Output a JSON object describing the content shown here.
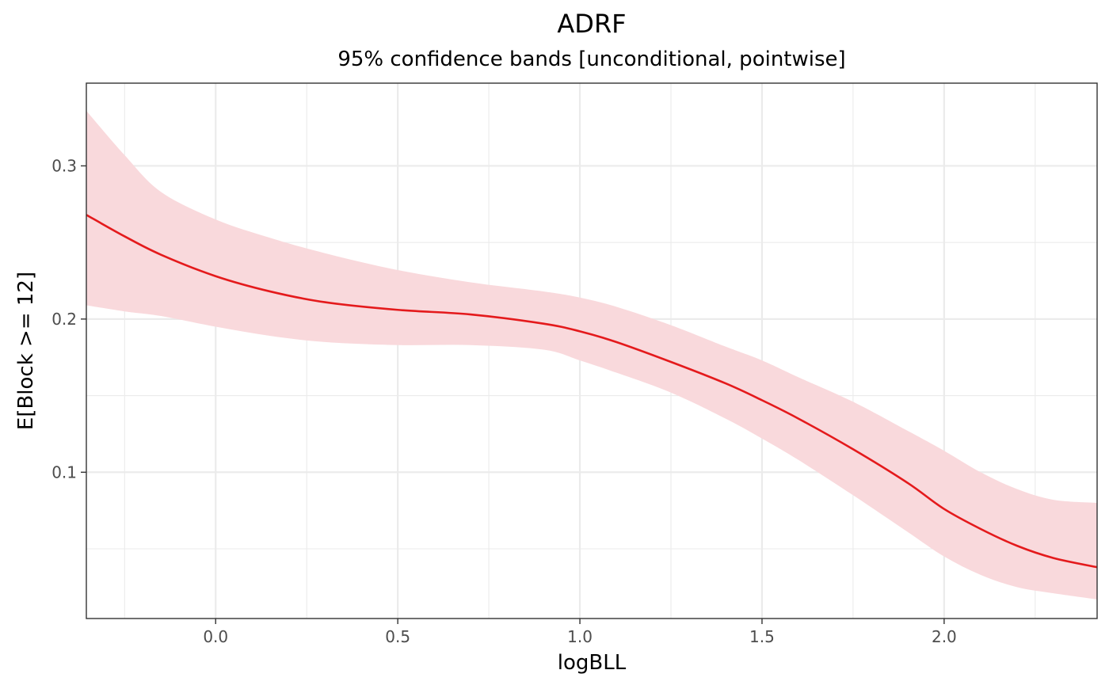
{
  "chart_data": {
    "type": "line",
    "title": "ADRF",
    "subtitle": "95% confidence bands [unconditional, pointwise]",
    "xlabel": "logBLL",
    "ylabel": "E[Block >= 12]",
    "xlim": [
      -0.355,
      2.42
    ],
    "ylim": [
      0.0045,
      0.354
    ],
    "x_ticks": [
      0.0,
      0.5,
      1.0,
      1.5,
      2.0
    ],
    "x_tick_labels": [
      "0.0",
      "0.5",
      "1.0",
      "1.5",
      "2.0"
    ],
    "x_minor_ticks": [
      -0.25,
      0.25,
      0.75,
      1.25,
      1.75,
      2.25
    ],
    "y_ticks": [
      0.1,
      0.2,
      0.3
    ],
    "y_tick_labels": [
      "0.1",
      "0.2",
      "0.3"
    ],
    "y_minor_ticks": [
      0.05,
      0.15,
      0.25
    ],
    "grid": true,
    "colors": {
      "line": "#e41a1c",
      "band": "#f9d9dc",
      "grid": "#ebebeb",
      "border": "#333333"
    },
    "series": [
      {
        "x": [
          -0.355,
          -0.25,
          -0.15,
          0.0,
          0.15,
          0.3,
          0.5,
          0.7,
          0.9,
          1.0,
          1.1,
          1.25,
          1.4,
          1.5,
          1.6,
          1.75,
          1.9,
          2.0,
          2.1,
          2.2,
          2.3,
          2.42
        ],
        "y": [
          0.268,
          0.254,
          0.242,
          0.228,
          0.218,
          0.211,
          0.206,
          0.203,
          0.197,
          0.192,
          0.185,
          0.172,
          0.158,
          0.147,
          0.135,
          0.115,
          0.093,
          0.076,
          0.063,
          0.052,
          0.044,
          0.038
        ],
        "lower": [
          0.209,
          0.205,
          0.202,
          0.195,
          0.189,
          0.185,
          0.183,
          0.183,
          0.18,
          0.173,
          0.165,
          0.152,
          0.135,
          0.122,
          0.108,
          0.085,
          0.061,
          0.045,
          0.033,
          0.025,
          0.021,
          0.017
        ],
        "upper": [
          0.336,
          0.307,
          0.283,
          0.265,
          0.253,
          0.243,
          0.232,
          0.224,
          0.218,
          0.214,
          0.208,
          0.196,
          0.182,
          0.173,
          0.162,
          0.146,
          0.127,
          0.114,
          0.1,
          0.089,
          0.082,
          0.08
        ]
      }
    ]
  }
}
